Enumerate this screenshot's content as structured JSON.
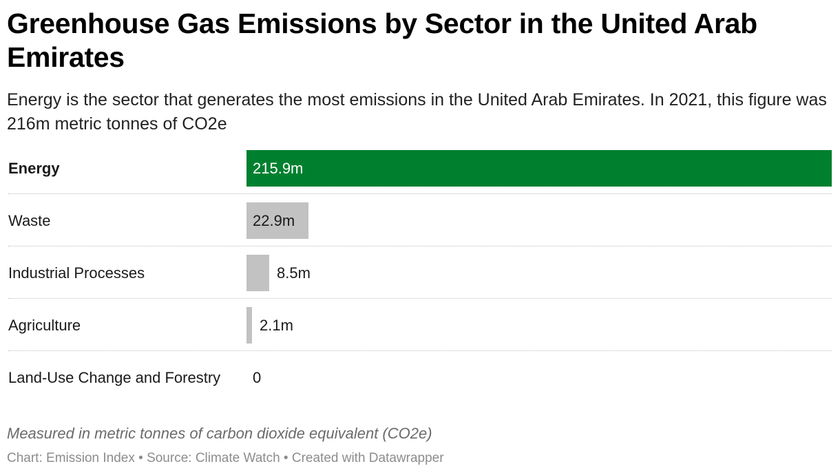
{
  "header": {
    "title": "Greenhouse Gas Emissions by Sector in the United Arab Emirates",
    "subtitle": "Energy is the sector that generates the most emissions in the United Arab Emirates. In 2021, this figure was 216m metric tonnes of CO2e"
  },
  "chart_data": {
    "type": "bar",
    "orientation": "horizontal",
    "categories": [
      "Energy",
      "Waste",
      "Industrial Processes",
      "Agriculture",
      "Land-Use Change and Forestry"
    ],
    "values": [
      215.9,
      22.9,
      8.5,
      2.1,
      0
    ],
    "value_labels": [
      "215.9m",
      "22.9m",
      "8.5m",
      "2.1m",
      "0"
    ],
    "highlight": "Energy",
    "colors": {
      "highlight": "#00802f",
      "default": "#c2c2c2"
    },
    "xlim": [
      0,
      215.9
    ],
    "grid": false
  },
  "notes": "Measured in metric tonnes of carbon dioxide equivalent (CO2e)",
  "footer": "Chart: Emission Index • Source: Climate Watch • Created with Datawrapper"
}
